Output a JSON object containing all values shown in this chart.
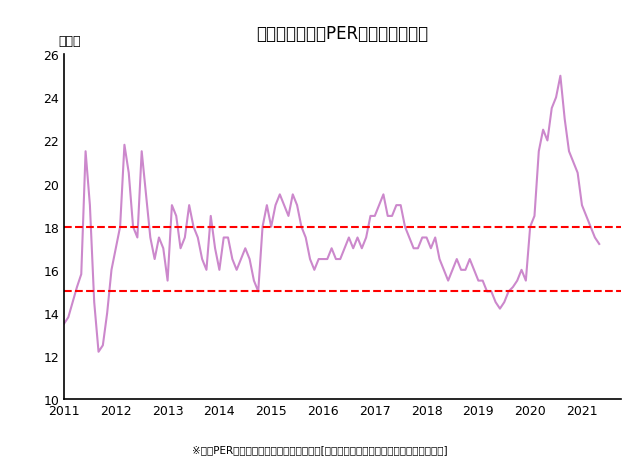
{
  "title": "日経平均の予想PERの推移（月足）",
  "ylabel": "（倍）",
  "footnote": "※予想PERはブルームバーグコンセンサス[出所：ブルームバーグ、アイザワ証券作成]",
  "line_color": "#cc88cc",
  "hline1": 18,
  "hline2": 15,
  "hline_color": "red",
  "ylim": [
    10,
    26
  ],
  "yticks": [
    10,
    12,
    14,
    16,
    18,
    20,
    22,
    24,
    26
  ],
  "background_color": "#ffffff",
  "x_labels": [
    "2011",
    "2012",
    "2013",
    "2014",
    "2015",
    "2016",
    "2017",
    "2018",
    "2019",
    "2020",
    "2021"
  ],
  "data": [
    13.5,
    13.8,
    14.5,
    15.2,
    15.8,
    21.5,
    19.0,
    14.5,
    12.2,
    12.5,
    14.0,
    16.0,
    17.0,
    18.0,
    21.8,
    20.5,
    18.0,
    17.5,
    21.5,
    19.5,
    17.5,
    16.5,
    17.5,
    17.0,
    15.5,
    19.0,
    18.5,
    17.0,
    17.5,
    19.0,
    18.0,
    17.5,
    16.5,
    16.0,
    18.5,
    17.0,
    16.0,
    17.5,
    17.5,
    16.5,
    16.0,
    16.5,
    17.0,
    16.5,
    15.5,
    15.0,
    18.0,
    19.0,
    18.0,
    19.0,
    19.5,
    19.0,
    18.5,
    19.5,
    19.0,
    18.0,
    17.5,
    16.5,
    16.0,
    16.5,
    16.5,
    16.5,
    17.0,
    16.5,
    16.5,
    17.0,
    17.5,
    17.0,
    17.5,
    17.0,
    17.5,
    18.5,
    18.5,
    19.0,
    19.5,
    18.5,
    18.5,
    19.0,
    19.0,
    18.0,
    17.5,
    17.0,
    17.0,
    17.5,
    17.5,
    17.0,
    17.5,
    16.5,
    16.0,
    15.5,
    16.0,
    16.5,
    16.0,
    16.0,
    16.5,
    16.0,
    15.5,
    15.5,
    15.0,
    15.0,
    14.5,
    14.2,
    14.5,
    15.0,
    15.2,
    15.5,
    16.0,
    15.5,
    18.0,
    18.5,
    21.5,
    22.5,
    22.0,
    23.5,
    24.0,
    25.0,
    23.0,
    21.5,
    21.0,
    20.5,
    19.0,
    18.5,
    18.0,
    17.5,
    17.2
  ]
}
